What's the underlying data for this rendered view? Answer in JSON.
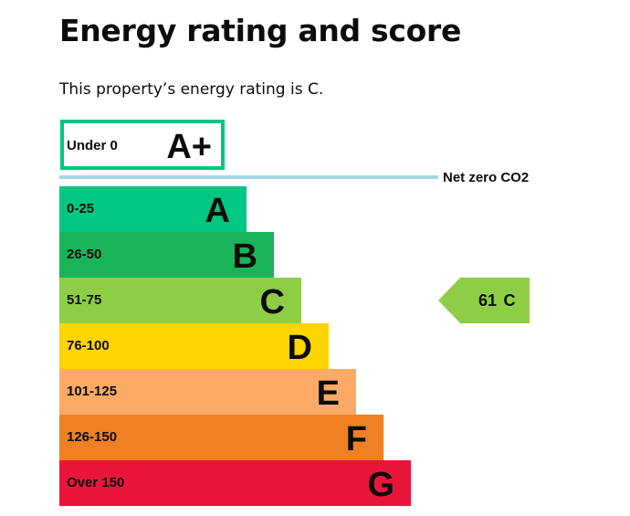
{
  "page": {
    "heading": "Energy rating and score",
    "intro": "This property’s energy rating is C."
  },
  "chart_data": {
    "type": "bar",
    "title": "",
    "xlabel": "",
    "ylabel": "",
    "top_band": {
      "range": "Under 0",
      "letter": "A+",
      "border_color": "#00c781"
    },
    "net_zero_line": {
      "label": "Net zero CO2",
      "color": "#a4d7e6"
    },
    "bands": [
      {
        "range": "0-25",
        "letter": "A",
        "color": "#00c781",
        "level": 1
      },
      {
        "range": "26-50",
        "letter": "B",
        "color": "#19b459",
        "level": 2
      },
      {
        "range": "51-75",
        "letter": "C",
        "color": "#8dce46",
        "level": 3
      },
      {
        "range": "76-100",
        "letter": "D",
        "color": "#ffd500",
        "level": 4
      },
      {
        "range": "101-125",
        "letter": "E",
        "color": "#fcaa65",
        "level": 5
      },
      {
        "range": "126-150",
        "letter": "F",
        "color": "#ef8023",
        "level": 6
      },
      {
        "range": "Over 150",
        "letter": "G",
        "color": "#e9153b",
        "level": 7
      }
    ],
    "current_rating": {
      "score": "61",
      "letter": "C",
      "band_index": 2
    }
  }
}
